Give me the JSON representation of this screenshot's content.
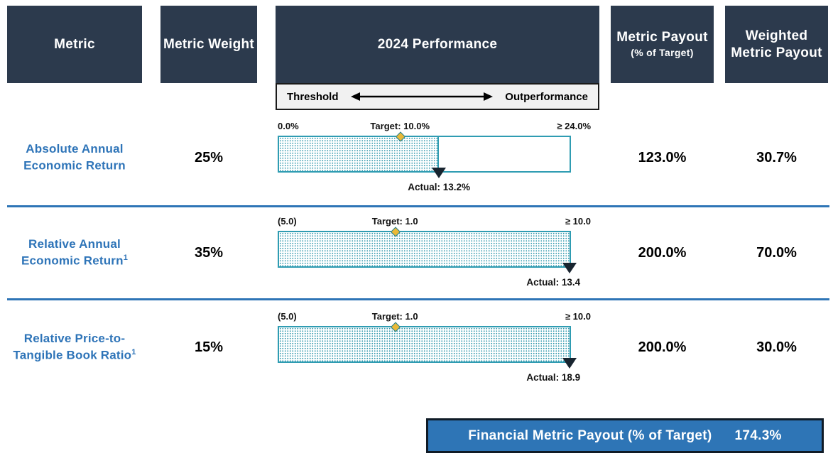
{
  "header": {
    "columns": {
      "metric": "Metric",
      "weight": "Metric Weight",
      "performance": "2024 Performance",
      "payout": "Metric Payout",
      "payout_sub": "(% of Target)",
      "weighted": "Weighted Metric Payout"
    },
    "scale": {
      "left": "Threshold",
      "right": "Outperformance"
    }
  },
  "rows": [
    {
      "metric": "Absolute Annual Economic Return",
      "sup": "",
      "weight": "25%",
      "bar": {
        "min_label": "0.0%",
        "target_label": "Target: 10.0%",
        "max_label": "≥ 24.0%",
        "actual_label": "Actual: 13.2%",
        "fill_pct": 55,
        "target_pct": 41.7,
        "actual_pct": 55
      },
      "payout": "123.0%",
      "weighted": "30.7%"
    },
    {
      "metric": "Relative Annual Economic Return",
      "sup": "1",
      "weight": "35%",
      "bar": {
        "min_label": "(5.0)",
        "target_label": "Target: 1.0",
        "max_label": "≥ 10.0",
        "actual_label": "Actual: 13.4",
        "fill_pct": 100,
        "target_pct": 40,
        "actual_pct": 100
      },
      "payout": "200.0%",
      "weighted": "70.0%"
    },
    {
      "metric": "Relative Price-to-Tangible Book Ratio",
      "sup": "1",
      "weight": "15%",
      "bar": {
        "min_label": "(5.0)",
        "target_label": "Target: 1.0",
        "max_label": "≥ 10.0",
        "actual_label": "Actual: 18.9",
        "fill_pct": 100,
        "target_pct": 40,
        "actual_pct": 100
      },
      "payout": "200.0%",
      "weighted": "30.0%"
    }
  ],
  "footer": {
    "label": "Financial Metric Payout (% of Target)",
    "value": "174.3%"
  },
  "colors": {
    "header_navy": "#2c3a4d",
    "metric_blue": "#2e74b8",
    "divider_blue": "#2e75b6",
    "bar_teal": "#2f9cb2",
    "target_gold": "#eab937",
    "marker_navy": "#18242f",
    "footer_blue": "#2e75b6",
    "strip_gray": "#f1f1f1"
  },
  "chart_data": [
    {
      "type": "bar",
      "title": "Absolute Annual Economic Return (weight 25%)",
      "axis_range_labels": [
        "0.0%",
        "≥ 24.0%"
      ],
      "xlim": [
        0,
        24
      ],
      "target": 10.0,
      "actual": 13.2,
      "metric_payout_pct_of_target": 123.0,
      "weighted_metric_payout": 30.7
    },
    {
      "type": "bar",
      "title": "Relative Annual Economic Return (weight 35%)",
      "axis_range_labels": [
        "(5.0)",
        "≥ 10.0"
      ],
      "xlim": [
        -5,
        10
      ],
      "target": 1.0,
      "actual": 13.4,
      "metric_payout_pct_of_target": 200.0,
      "weighted_metric_payout": 70.0
    },
    {
      "type": "bar",
      "title": "Relative Price-to-Tangible Book Ratio (weight 15%)",
      "axis_range_labels": [
        "(5.0)",
        "≥ 10.0"
      ],
      "xlim": [
        -5,
        10
      ],
      "target": 1.0,
      "actual": 18.9,
      "metric_payout_pct_of_target": 200.0,
      "weighted_metric_payout": 30.0
    },
    {
      "type": "table",
      "title": "Financial Metric Payout (% of Target)",
      "value": 174.3
    }
  ]
}
